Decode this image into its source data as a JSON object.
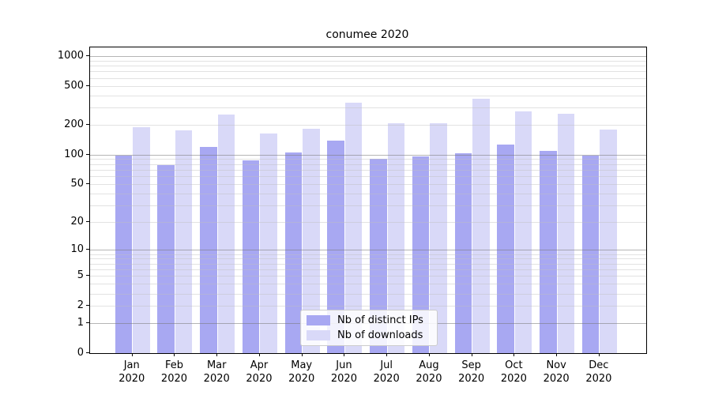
{
  "title": "conumee 2020",
  "colors": {
    "ips_bar": "#a8a8f2",
    "downloads_bar": "#d9d9f8",
    "major_gridline": "rgba(120,120,120,0.55)",
    "minor_gridline": "rgba(190,190,190,0.45)",
    "spine": "#000000",
    "legend_border": "#cccccc",
    "background": "#ffffff",
    "text": "#000000"
  },
  "legend": {
    "entries": [
      {
        "label": "Nb of distinct IPs"
      },
      {
        "label": "Nb of downloads"
      }
    ]
  },
  "chart_data": {
    "type": "bar",
    "title": "conumee 2020",
    "yscale": "log1p",
    "ylim": [
      0,
      1220
    ],
    "y_ticks": [
      0,
      1,
      2,
      5,
      10,
      20,
      50,
      100,
      200,
      500,
      1000
    ],
    "minor_grid_values": [
      2,
      3,
      4,
      5,
      6,
      7,
      8,
      9,
      20,
      30,
      40,
      50,
      60,
      70,
      80,
      90,
      200,
      300,
      400,
      500,
      600,
      700,
      800,
      900
    ],
    "major_grid_values": [
      1,
      10,
      100,
      1000
    ],
    "grid": true,
    "legend_position": "lower-center",
    "categories": [
      "Jan",
      "Feb",
      "Mar",
      "Apr",
      "May",
      "Jun",
      "Jul",
      "Aug",
      "Sep",
      "Oct",
      "Nov",
      "Dec"
    ],
    "category_sublabel": "2020",
    "series": [
      {
        "name": "Nb of distinct IPs",
        "values": [
          98,
          78,
          120,
          88,
          105,
          140,
          90,
          95,
          103,
          126,
          110,
          98
        ]
      },
      {
        "name": "Nb of downloads",
        "values": [
          190,
          176,
          255,
          165,
          184,
          335,
          207,
          208,
          372,
          273,
          262,
          180
        ]
      }
    ],
    "xlabel": "",
    "ylabel": ""
  }
}
